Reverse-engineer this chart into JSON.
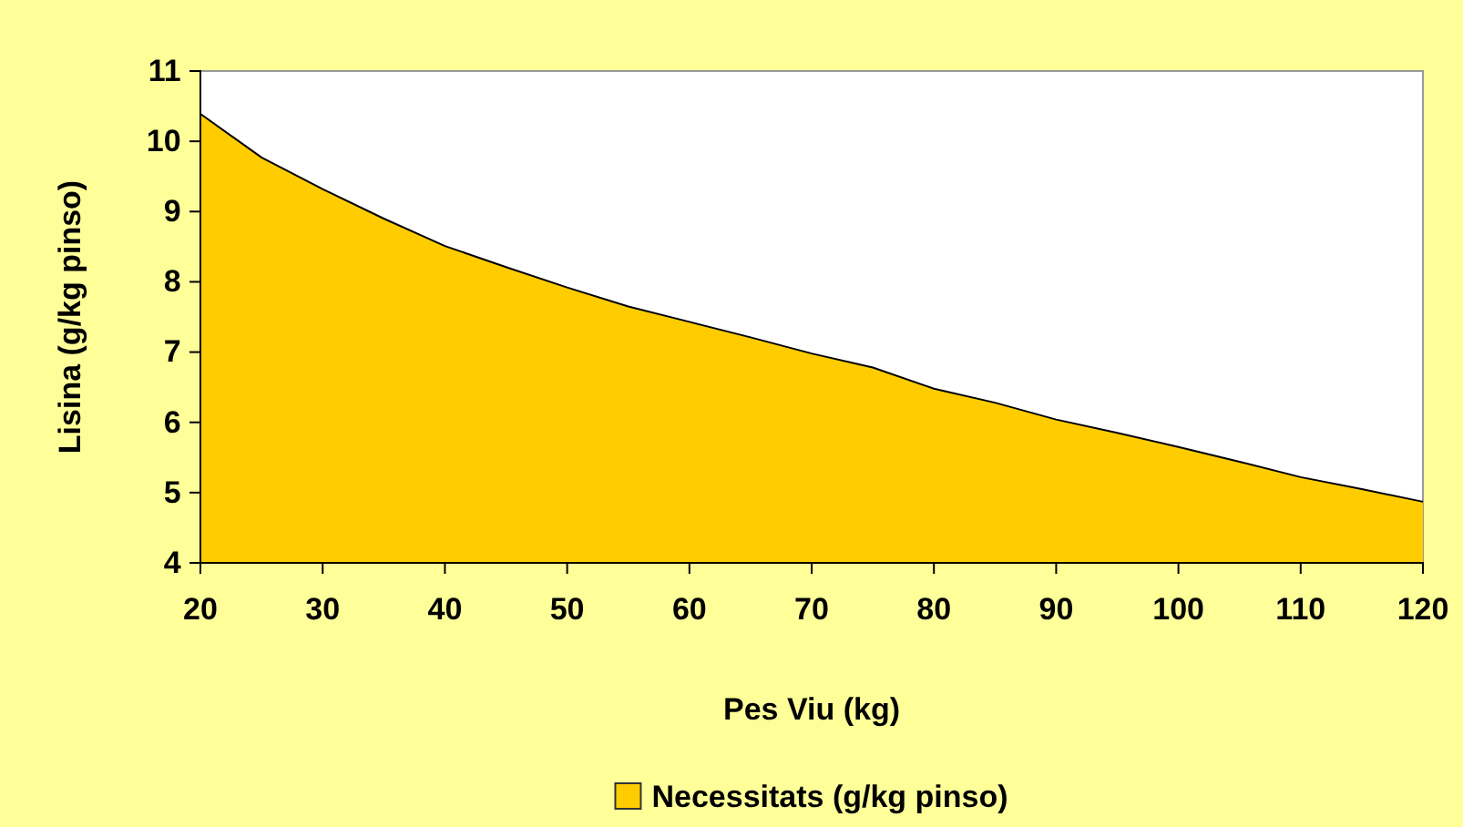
{
  "chart_data": {
    "type": "area",
    "xlabel": "Pes Viu (kg)",
    "ylabel": "Lisina (g/kg pinso)",
    "x": [
      20,
      25,
      30,
      35,
      40,
      45,
      50,
      55,
      60,
      65,
      70,
      75,
      80,
      85,
      90,
      95,
      100,
      105,
      110,
      115,
      120
    ],
    "series": [
      {
        "name": "Necessitats (g/kg pinso)",
        "color": "#ffcc00",
        "values": [
          10.39,
          9.77,
          9.32,
          8.9,
          8.51,
          8.21,
          7.92,
          7.65,
          7.43,
          7.21,
          6.98,
          6.78,
          6.48,
          6.28,
          6.04,
          5.85,
          5.65,
          5.44,
          5.22,
          5.05,
          4.87
        ]
      }
    ],
    "xlim": [
      20,
      120
    ],
    "xticks": [
      20,
      30,
      40,
      50,
      60,
      70,
      80,
      90,
      100,
      110,
      120
    ],
    "ylim": [
      4,
      11
    ],
    "yticks": [
      4,
      5,
      6,
      7,
      8,
      9,
      10,
      11
    ],
    "grid": false,
    "legend": "bottom"
  }
}
